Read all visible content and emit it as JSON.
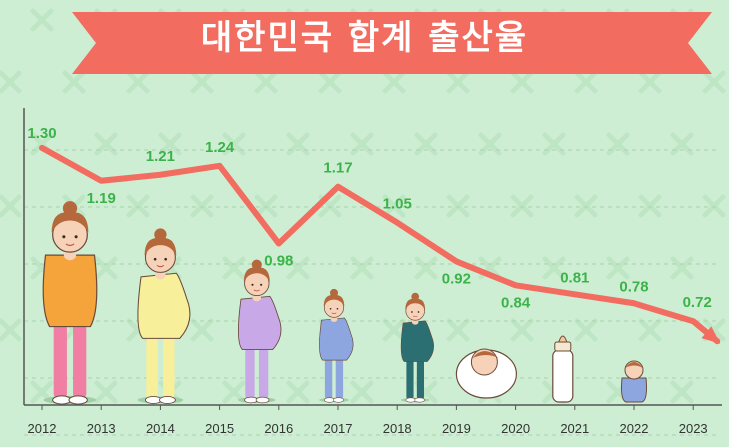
{
  "title": "대한민국 합계 출산율",
  "colors": {
    "background": "#cdeed3",
    "banner": "#f26c60",
    "line": "#f26c60",
    "label": "#3cb34a",
    "axis": "#555555",
    "grid": "#a9d3ad"
  },
  "chart_data": {
    "type": "line",
    "title": "대한민국 합계 출산율",
    "xlabel": "",
    "ylabel": "",
    "categories": [
      "2012",
      "2013",
      "2014",
      "2015",
      "2016",
      "2017",
      "2018",
      "2019",
      "2020",
      "2021",
      "2022",
      "2023"
    ],
    "values": [
      1.3,
      1.19,
      1.21,
      1.24,
      0.98,
      1.17,
      1.05,
      0.92,
      0.84,
      0.81,
      0.78,
      0.72
    ],
    "value_labels": [
      "1.30",
      "1.19",
      "1.21",
      "1.24",
      "0.98",
      "1.17",
      "1.05",
      "0.92",
      "0.84",
      "0.81",
      "0.78",
      "0.72"
    ],
    "ylim": [
      0.55,
      1.4
    ],
    "grid": true,
    "legend": "none"
  },
  "illustrations": [
    {
      "year": "2012",
      "icon": "adult-woman-icon"
    },
    {
      "year": "2014",
      "icon": "pregnant-woman-icon"
    },
    {
      "year": "2016",
      "icon": "pregnant-woman-icon"
    },
    {
      "year": "2017",
      "icon": "pregnant-woman-icon"
    },
    {
      "year": "2018",
      "icon": "pregnant-woman-icon"
    },
    {
      "year": "2019",
      "icon": "swaddled-baby-icon"
    },
    {
      "year": "2021",
      "icon": "baby-bottle-icon"
    },
    {
      "year": "2022",
      "icon": "small-child-icon"
    }
  ]
}
